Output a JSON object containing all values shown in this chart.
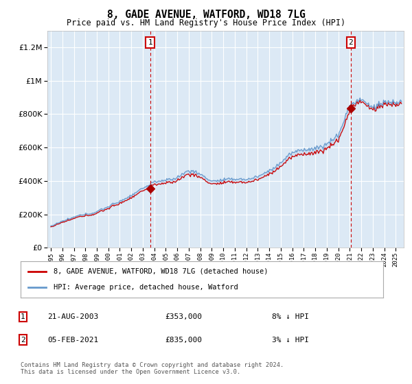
{
  "title": "8, GADE AVENUE, WATFORD, WD18 7LG",
  "subtitle": "Price paid vs. HM Land Registry's House Price Index (HPI)",
  "legend_line1": "8, GADE AVENUE, WATFORD, WD18 7LG (detached house)",
  "legend_line2": "HPI: Average price, detached house, Watford",
  "footer": "Contains HM Land Registry data © Crown copyright and database right 2024.\nThis data is licensed under the Open Government Licence v3.0.",
  "sale1_date": "21-AUG-2003",
  "sale1_price": "£353,000",
  "sale1_hpi": "8% ↓ HPI",
  "sale2_date": "05-FEB-2021",
  "sale2_price": "£835,000",
  "sale2_hpi": "3% ↓ HPI",
  "sale1_x": 2003.637,
  "sale1_y": 353000,
  "sale2_x": 2021.087,
  "sale2_y": 835000,
  "ylim": [
    0,
    1300000
  ],
  "xlim_start": 1994.7,
  "xlim_end": 2025.7,
  "bg_color": "#dce9f5",
  "outer_bg": "#ffffff",
  "grid_color": "#ffffff",
  "red_line_color": "#cc0000",
  "blue_line_color": "#6699cc",
  "fill_color": "#c5d8ee",
  "sale_marker_color": "#aa0000",
  "dashed_line_color": "#cc0000",
  "num_points": 372,
  "hpi_anchor_years": [
    1995,
    1996,
    1997,
    1998,
    1999,
    2000,
    2001,
    2002,
    2003,
    2004,
    2005,
    2006,
    2007,
    2008,
    2009,
    2010,
    2011,
    2012,
    2013,
    2014,
    2015,
    2016,
    2017,
    2018,
    2019,
    2020,
    2021,
    2022,
    2023,
    2024,
    2025
  ],
  "hpi_anchor_vals": [
    130000,
    152000,
    173000,
    195000,
    218000,
    245000,
    280000,
    315000,
    350000,
    390000,
    400000,
    420000,
    460000,
    440000,
    390000,
    400000,
    405000,
    405000,
    420000,
    455000,
    510000,
    570000,
    590000,
    600000,
    630000,
    680000,
    860000,
    890000,
    840000,
    870000,
    870000
  ]
}
